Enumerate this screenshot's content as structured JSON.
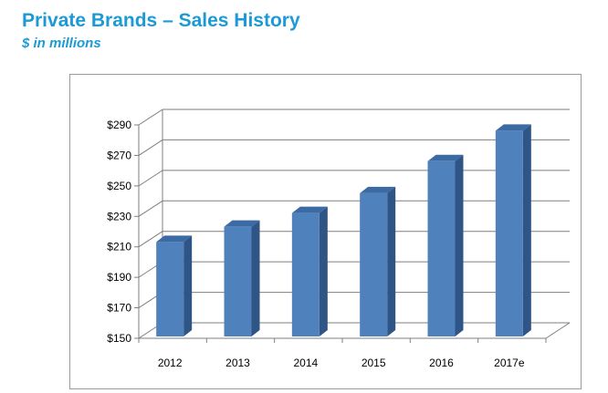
{
  "header": {
    "title": "Private Brands – Sales History",
    "subtitle": "$ in millions"
  },
  "colors": {
    "title": "#1c9ad6",
    "bar_front": "#4f81bd",
    "bar_side": "#2f5586",
    "bar_top": "#3c6aa3",
    "grid": "#7f7f7f"
  },
  "chart_data": {
    "type": "bar",
    "title": "",
    "xlabel": "",
    "ylabel": "",
    "categories": [
      "2012",
      "2013",
      "2014",
      "2015",
      "2016",
      "2017e"
    ],
    "values": [
      212,
      222,
      231,
      244,
      265,
      285
    ],
    "ylim": [
      150,
      290
    ],
    "yticks": [
      150,
      170,
      190,
      210,
      230,
      250,
      270,
      290
    ],
    "ytick_labels": [
      "$150",
      "$170",
      "$190",
      "$210",
      "$230",
      "$250",
      "$270",
      "$290"
    ],
    "grid": true,
    "three_d": true,
    "legend": "none"
  }
}
